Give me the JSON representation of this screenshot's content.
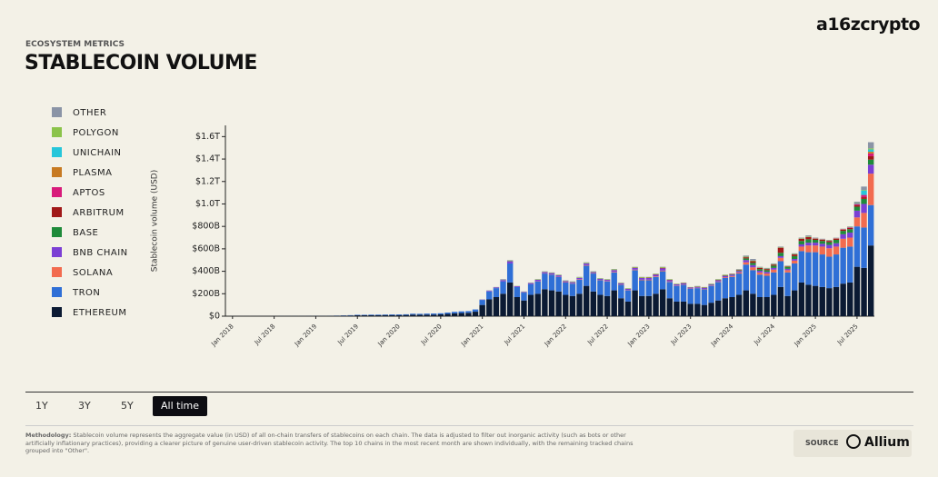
{
  "header": {
    "brand": "a16zcrypto",
    "eyebrow": "ECOSYSTEM METRICS",
    "title": "STABLECOIN VOLUME"
  },
  "chart_data": {
    "type": "stacked_bar",
    "y_label": "Stablecoin volume (USD)",
    "grid": false,
    "legend": "left",
    "ylim": [
      0,
      1700
    ],
    "yticks": [
      {
        "value": 0,
        "label": "$0"
      },
      {
        "value": 200,
        "label": "$200B"
      },
      {
        "value": 400,
        "label": "$400B"
      },
      {
        "value": 600,
        "label": "$600B"
      },
      {
        "value": 800,
        "label": "$800B"
      },
      {
        "value": 1000,
        "label": "$1.0T"
      },
      {
        "value": 1200,
        "label": "$1.2T"
      },
      {
        "value": 1400,
        "label": "$1.4T"
      },
      {
        "value": 1600,
        "label": "$1.6T"
      }
    ],
    "categories": [
      "Jan 2018",
      null,
      null,
      null,
      null,
      null,
      "Jul 2018",
      null,
      null,
      null,
      null,
      null,
      "Jan 2019",
      null,
      null,
      null,
      null,
      null,
      "Jul 2019",
      null,
      null,
      null,
      null,
      null,
      "Jan 2020",
      null,
      null,
      null,
      null,
      null,
      "Jul 2020",
      null,
      null,
      null,
      null,
      null,
      "Jan 2021",
      null,
      null,
      null,
      null,
      null,
      "Jul 2021",
      null,
      null,
      null,
      null,
      null,
      "Jan 2022",
      null,
      null,
      null,
      null,
      null,
      "Jul 2022",
      null,
      null,
      null,
      null,
      null,
      "Jan 2023",
      null,
      null,
      null,
      null,
      null,
      "Jul 2023",
      null,
      null,
      null,
      null,
      null,
      "Jan 2024",
      null,
      null,
      null,
      null,
      null,
      "Jul 2024",
      null,
      null,
      null,
      null,
      null,
      "Jan 2025",
      null,
      null,
      null,
      null,
      null,
      "Jul 2025",
      null,
      null
    ],
    "series": [
      {
        "name": "ETHEREUM",
        "color": "#0b1a33",
        "values": [
          1,
          1,
          1,
          1,
          1,
          1,
          1,
          2,
          2,
          2,
          2,
          3,
          3,
          3,
          4,
          4,
          5,
          6,
          8,
          8,
          9,
          9,
          10,
          10,
          10,
          11,
          14,
          13,
          14,
          14,
          16,
          20,
          25,
          28,
          30,
          40,
          100,
          150,
          170,
          200,
          300,
          170,
          140,
          190,
          200,
          240,
          230,
          220,
          190,
          180,
          200,
          270,
          220,
          190,
          180,
          230,
          160,
          130,
          230,
          180,
          180,
          200,
          240,
          160,
          130,
          130,
          110,
          110,
          100,
          120,
          140,
          160,
          170,
          190,
          230,
          200,
          170,
          170,
          190,
          260,
          180,
          230,
          300,
          280,
          270,
          260,
          250,
          260,
          290,
          300,
          440,
          430,
          630
        ]
      },
      {
        "name": "TRON",
        "color": "#2f6fd6",
        "values": [
          0,
          0,
          0,
          0,
          0,
          0,
          0,
          0,
          0,
          0,
          0,
          0,
          0,
          0,
          0,
          1,
          2,
          3,
          4,
          4,
          5,
          5,
          5,
          6,
          6,
          6,
          8,
          8,
          9,
          10,
          10,
          12,
          14,
          15,
          15,
          20,
          45,
          70,
          80,
          110,
          170,
          90,
          70,
          95,
          110,
          140,
          140,
          130,
          110,
          110,
          125,
          180,
          160,
          130,
          130,
          160,
          120,
          100,
          180,
          140,
          140,
          150,
          160,
          145,
          140,
          150,
          135,
          140,
          140,
          150,
          165,
          180,
          180,
          190,
          230,
          210,
          200,
          190,
          200,
          230,
          210,
          240,
          280,
          290,
          300,
          290,
          280,
          290,
          320,
          320,
          360,
          360,
          360
        ]
      },
      {
        "name": "SOLANA",
        "color": "#f26b4f",
        "values": [
          0,
          0,
          0,
          0,
          0,
          0,
          0,
          0,
          0,
          0,
          0,
          0,
          0,
          0,
          0,
          0,
          0,
          0,
          0,
          0,
          0,
          0,
          0,
          0,
          0,
          0,
          0,
          0,
          0,
          0,
          0,
          0,
          0,
          0,
          0,
          0,
          0,
          0,
          0,
          0,
          0,
          0,
          0,
          0,
          2,
          2,
          2,
          2,
          3,
          3,
          4,
          5,
          3,
          3,
          3,
          5,
          3,
          3,
          5,
          5,
          5,
          5,
          6,
          4,
          3,
          3,
          2,
          3,
          3,
          3,
          4,
          6,
          8,
          10,
          20,
          25,
          20,
          20,
          25,
          30,
          20,
          25,
          40,
          60,
          60,
          70,
          75,
          70,
          80,
          80,
          80,
          130,
          280
        ]
      },
      {
        "name": "BNB CHAIN",
        "color": "#7b3fd4",
        "values": [
          0,
          0,
          0,
          0,
          0,
          0,
          0,
          0,
          0,
          0,
          0,
          0,
          0,
          0,
          0,
          0,
          0,
          0,
          0,
          0,
          0,
          0,
          0,
          0,
          0,
          0,
          0,
          0,
          0,
          0,
          0,
          0,
          0,
          0,
          0,
          0,
          3,
          6,
          6,
          12,
          20,
          7,
          6,
          10,
          12,
          12,
          12,
          12,
          10,
          10,
          12,
          15,
          10,
          10,
          10,
          15,
          10,
          10,
          15,
          15,
          15,
          15,
          20,
          12,
          10,
          10,
          8,
          8,
          8,
          8,
          10,
          12,
          12,
          12,
          20,
          20,
          15,
          15,
          15,
          15,
          12,
          15,
          20,
          25,
          25,
          25,
          30,
          30,
          40,
          45,
          60,
          80,
          80
        ]
      },
      {
        "name": "BASE",
        "color": "#1e8a3a",
        "values": [
          0,
          0,
          0,
          0,
          0,
          0,
          0,
          0,
          0,
          0,
          0,
          0,
          0,
          0,
          0,
          0,
          0,
          0,
          0,
          0,
          0,
          0,
          0,
          0,
          0,
          0,
          0,
          0,
          0,
          0,
          0,
          0,
          0,
          0,
          0,
          0,
          0,
          0,
          0,
          0,
          0,
          0,
          0,
          0,
          0,
          0,
          0,
          0,
          0,
          0,
          0,
          0,
          0,
          0,
          0,
          0,
          0,
          0,
          0,
          0,
          0,
          0,
          0,
          0,
          0,
          0,
          0,
          1,
          2,
          2,
          2,
          3,
          3,
          5,
          15,
          20,
          15,
          15,
          20,
          30,
          15,
          25,
          30,
          30,
          25,
          25,
          25,
          30,
          30,
          30,
          35,
          45,
          45
        ]
      },
      {
        "name": "ARBITRUM",
        "color": "#a01818",
        "values": [
          0,
          0,
          0,
          0,
          0,
          0,
          0,
          0,
          0,
          0,
          0,
          0,
          0,
          0,
          0,
          0,
          0,
          0,
          0,
          0,
          0,
          0,
          0,
          0,
          0,
          0,
          0,
          0,
          0,
          0,
          0,
          0,
          0,
          0,
          0,
          0,
          0,
          0,
          0,
          0,
          0,
          0,
          0,
          0,
          0,
          0,
          0,
          0,
          0,
          0,
          0,
          0,
          0,
          0,
          1,
          1,
          1,
          1,
          2,
          2,
          3,
          3,
          5,
          3,
          2,
          2,
          2,
          2,
          2,
          2,
          3,
          3,
          3,
          5,
          10,
          15,
          10,
          10,
          10,
          45,
          5,
          15,
          20,
          20,
          10,
          10,
          10,
          10,
          10,
          12,
          15,
          15,
          30
        ]
      },
      {
        "name": "APTOS",
        "color": "#d81b7a",
        "values": [
          0,
          0,
          0,
          0,
          0,
          0,
          0,
          0,
          0,
          0,
          0,
          0,
          0,
          0,
          0,
          0,
          0,
          0,
          0,
          0,
          0,
          0,
          0,
          0,
          0,
          0,
          0,
          0,
          0,
          0,
          0,
          0,
          0,
          0,
          0,
          0,
          0,
          0,
          0,
          0,
          0,
          0,
          0,
          0,
          0,
          0,
          0,
          0,
          0,
          0,
          0,
          0,
          0,
          0,
          0,
          0,
          0,
          0,
          0,
          0,
          0,
          0,
          0,
          0,
          0,
          0,
          0,
          0,
          0,
          0,
          0,
          0,
          0,
          0,
          0,
          0,
          0,
          0,
          0,
          0,
          0,
          0,
          0,
          0,
          2,
          3,
          3,
          4,
          5,
          5,
          10,
          20,
          25
        ]
      },
      {
        "name": "PLASMA",
        "color": "#c77a22",
        "values": [
          0,
          0,
          0,
          0,
          0,
          0,
          0,
          0,
          0,
          0,
          0,
          0,
          0,
          0,
          0,
          0,
          0,
          0,
          0,
          0,
          0,
          0,
          0,
          0,
          0,
          0,
          0,
          0,
          0,
          0,
          0,
          0,
          0,
          0,
          0,
          0,
          0,
          0,
          0,
          0,
          0,
          0,
          0,
          0,
          0,
          0,
          0,
          0,
          0,
          0,
          0,
          0,
          0,
          0,
          0,
          0,
          0,
          0,
          0,
          0,
          0,
          0,
          0,
          0,
          0,
          0,
          0,
          0,
          0,
          0,
          0,
          0,
          0,
          0,
          0,
          0,
          0,
          0,
          0,
          0,
          0,
          0,
          0,
          0,
          0,
          0,
          0,
          0,
          0,
          0,
          0,
          0,
          15
        ]
      },
      {
        "name": "UNICHAIN",
        "color": "#26c6da",
        "values": [
          0,
          0,
          0,
          0,
          0,
          0,
          0,
          0,
          0,
          0,
          0,
          0,
          0,
          0,
          0,
          0,
          0,
          0,
          0,
          0,
          0,
          0,
          0,
          0,
          0,
          0,
          0,
          0,
          0,
          0,
          0,
          0,
          0,
          0,
          0,
          0,
          0,
          0,
          0,
          0,
          0,
          0,
          0,
          0,
          0,
          0,
          0,
          0,
          0,
          0,
          0,
          0,
          0,
          0,
          0,
          0,
          0,
          0,
          0,
          0,
          0,
          0,
          0,
          0,
          0,
          0,
          0,
          0,
          0,
          0,
          0,
          0,
          0,
          0,
          0,
          0,
          0,
          0,
          0,
          0,
          0,
          0,
          0,
          0,
          0,
          0,
          0,
          0,
          0,
          2,
          5,
          40,
          20
        ]
      },
      {
        "name": "POLYGON",
        "color": "#8bc34a",
        "values": [
          0,
          0,
          0,
          0,
          0,
          0,
          0,
          0,
          0,
          0,
          0,
          0,
          0,
          0,
          0,
          0,
          0,
          0,
          0,
          0,
          0,
          0,
          0,
          0,
          0,
          0,
          0,
          0,
          0,
          0,
          0,
          0,
          0,
          0,
          0,
          0,
          0,
          0,
          0,
          2,
          6,
          2,
          2,
          3,
          4,
          4,
          4,
          4,
          4,
          4,
          5,
          6,
          4,
          4,
          4,
          6,
          4,
          4,
          6,
          6,
          5,
          5,
          6,
          5,
          4,
          4,
          3,
          3,
          3,
          3,
          4,
          4,
          2,
          3,
          5,
          5,
          4,
          4,
          4,
          4,
          3,
          4,
          4,
          5,
          3,
          3,
          3,
          3,
          3,
          3,
          4,
          5,
          10
        ]
      },
      {
        "name": "OTHER",
        "color": "#8a94a6",
        "values": [
          0,
          0,
          0,
          0,
          0,
          0,
          0,
          0,
          0,
          0,
          0,
          0,
          0,
          0,
          0,
          0,
          0,
          0,
          0,
          0,
          0,
          0,
          0,
          0,
          0,
          0,
          0,
          0,
          0,
          0,
          0,
          0,
          0,
          0,
          0,
          0,
          2,
          4,
          4,
          6,
          4,
          1,
          2,
          2,
          2,
          2,
          2,
          2,
          3,
          3,
          4,
          4,
          3,
          3,
          2,
          3,
          2,
          2,
          2,
          2,
          2,
          2,
          3,
          1,
          1,
          1,
          0,
          2,
          2,
          2,
          2,
          2,
          2,
          5,
          10,
          15,
          6,
          6,
          6,
          6,
          5,
          6,
          6,
          10,
          5,
          4,
          4,
          3,
          2,
          3,
          11,
          30,
          55
        ]
      }
    ]
  },
  "controls": {
    "ranges": [
      "1Y",
      "3Y",
      "5Y",
      "All time"
    ],
    "active": "All time"
  },
  "footer": {
    "methodology_label": "Methodology:",
    "methodology_text": "Stablecoin volume represents the aggregate value (in USD) of all on-chain transfers of stablecoins on each chain. The data is adjusted to filter out inorganic activity (such as bots or other artificially inflationary practices), providing a clearer picture of genuine user-driven stablecoin activity. The top 10 chains in the most recent month are shown individually, with the remaining tracked chains grouped into \"Other\".",
    "source_label": "SOURCE",
    "source": "Allium"
  }
}
